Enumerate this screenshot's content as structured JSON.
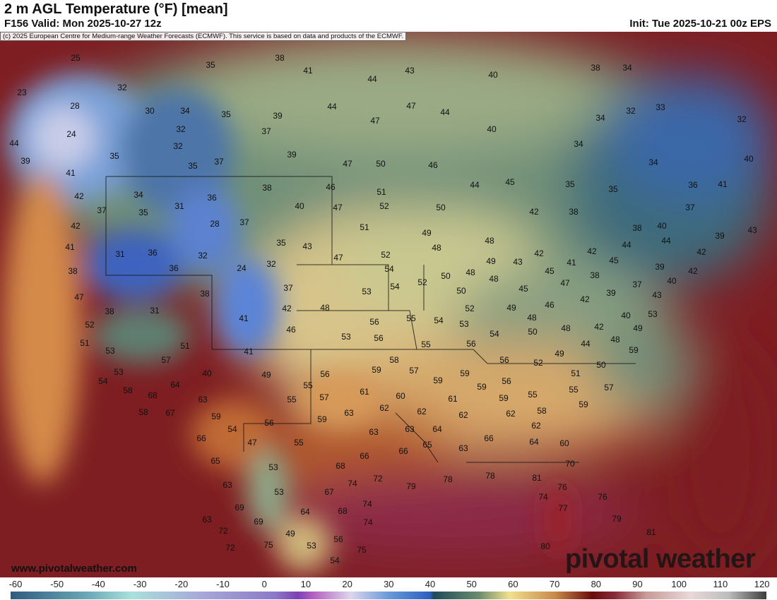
{
  "header": {
    "title": "2 m AGL Temperature (°F) [mean]",
    "valid": "F156 Valid: Mon 2025-10-27 12z",
    "init": "Init: Tue 2025-10-21 00z EPS"
  },
  "copyright": "(c) 2025 European Centre for Medium-range Weather Forecasts (ECMWF). This service is based on data and products of the ECMWF.",
  "watermark": {
    "site": "www.pivotalweather.com",
    "brand": "pivotal weather"
  },
  "colorbar": {
    "ticks": [
      "-60",
      "-50",
      "-40",
      "-30",
      "-20",
      "-10",
      "0",
      "10",
      "20",
      "30",
      "40",
      "50",
      "60",
      "70",
      "80",
      "90",
      "100",
      "110",
      "120"
    ],
    "units": "°F"
  },
  "map": {
    "labels": [
      "25",
      "38",
      "41",
      "43",
      "35",
      "44",
      "40",
      "38",
      "34",
      "23",
      "32",
      "28",
      "30",
      "34",
      "35",
      "39",
      "44",
      "47",
      "44",
      "32",
      "33",
      "32",
      "24",
      "37",
      "47",
      "40",
      "34",
      "44",
      "32",
      "32",
      "35",
      "39",
      "34",
      "39",
      "35",
      "37",
      "47",
      "50",
      "46",
      "34",
      "40",
      "41",
      "46",
      "44",
      "45",
      "35",
      "35",
      "36",
      "41",
      "42",
      "34",
      "31",
      "36",
      "38",
      "51",
      "37",
      "37",
      "35",
      "40",
      "47",
      "52",
      "50",
      "42",
      "38",
      "42",
      "28",
      "37",
      "51",
      "49",
      "38",
      "40",
      "43",
      "39",
      "41",
      "31",
      "36",
      "32",
      "35",
      "43",
      "47",
      "52",
      "48",
      "48",
      "42",
      "43",
      "44",
      "44",
      "42",
      "42",
      "45",
      "38",
      "36",
      "24",
      "32",
      "54",
      "50",
      "48",
      "49",
      "41",
      "45",
      "39",
      "42",
      "47",
      "38",
      "37",
      "53",
      "54",
      "52",
      "50",
      "48",
      "45",
      "38",
      "47",
      "39",
      "37",
      "40",
      "43",
      "38",
      "31",
      "42",
      "48",
      "52",
      "49",
      "46",
      "42",
      "40",
      "53",
      "41",
      "56",
      "55",
      "54",
      "53",
      "48",
      "52",
      "51",
      "46",
      "53",
      "56",
      "54",
      "50",
      "48",
      "42",
      "49",
      "48",
      "55",
      "56",
      "44",
      "51",
      "41",
      "53",
      "49",
      "59",
      "57",
      "56",
      "52",
      "50",
      "40",
      "49",
      "56",
      "59",
      "58",
      "57",
      "59",
      "59",
      "51",
      "53",
      "54",
      "64",
      "55",
      "61",
      "60",
      "56",
      "59",
      "55",
      "55",
      "57",
      "58",
      "68",
      "63",
      "55",
      "57",
      "59",
      "61",
      "59",
      "58",
      "67",
      "59",
      "63",
      "62",
      "62",
      "62",
      "58",
      "56",
      "59",
      "62",
      "54",
      "63",
      "63",
      "64",
      "62",
      "66",
      "47",
      "55",
      "65",
      "63",
      "66",
      "64",
      "60",
      "66",
      "66",
      "65",
      "68",
      "70",
      "53",
      "63",
      "74",
      "72",
      "79",
      "78",
      "78",
      "81",
      "76",
      "53",
      "67",
      "74",
      "76",
      "69",
      "74",
      "64",
      "68",
      "77",
      "63",
      "69",
      "74",
      "79",
      "72",
      "49",
      "56",
      "81",
      "75",
      "53",
      "75",
      "72",
      "80",
      "54"
    ]
  }
}
